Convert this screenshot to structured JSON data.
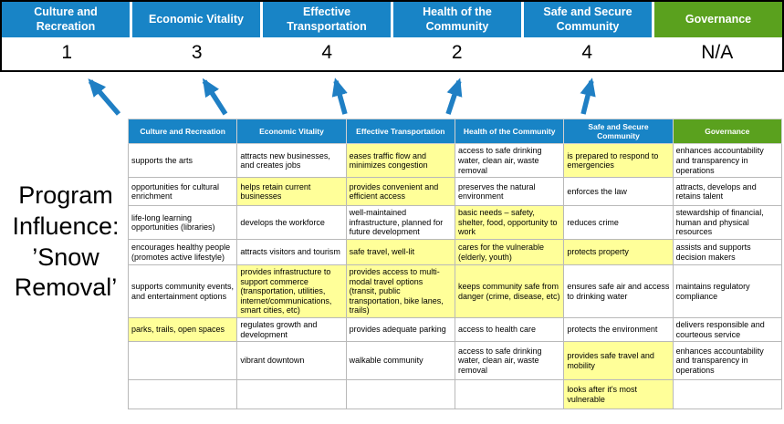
{
  "title": "Program Influence: ’Snow Removal’",
  "colors": {
    "header_blue": "#1884c6",
    "governance_green": "#5aa11e",
    "highlight_yellow": "#ffff99",
    "arrow_blue": "#1f7fc4"
  },
  "scoreboard": {
    "categories": [
      {
        "label": "Culture and Recreation",
        "score": "1",
        "color": "#1884c6"
      },
      {
        "label": "Economic Vitality",
        "score": "3",
        "color": "#1884c6"
      },
      {
        "label": "Effective Transportation",
        "score": "4",
        "color": "#1884c6"
      },
      {
        "label": "Health of the Community",
        "score": "2",
        "color": "#1884c6"
      },
      {
        "label": "Safe and Secure Community",
        "score": "4",
        "color": "#1884c6"
      },
      {
        "label": "Governance",
        "score": "N/A",
        "color": "#5aa11e"
      }
    ]
  },
  "table": {
    "headers": [
      {
        "label": "Culture and Recreation",
        "color": "#1884c6"
      },
      {
        "label": "Economic Vitality",
        "color": "#1884c6"
      },
      {
        "label": "Effective Transportation",
        "color": "#1884c6"
      },
      {
        "label": "Health of the Community",
        "color": "#1884c6"
      },
      {
        "label": "Safe and Secure Community",
        "color": "#1884c6"
      },
      {
        "label": "Governance",
        "color": "#5aa11e"
      }
    ],
    "rows": [
      {
        "cells": [
          {
            "text": "supports the arts",
            "highlight": false
          },
          {
            "text": "attracts new businesses, and creates jobs",
            "highlight": false
          },
          {
            "text": "eases traffic flow and minimizes congestion",
            "highlight": true
          },
          {
            "text": "access to safe drinking water, clean air, waste removal",
            "highlight": false
          },
          {
            "text": "is prepared to respond to emergencies",
            "highlight": true
          },
          {
            "text": "enhances accountability and transparency in operations",
            "highlight": false
          }
        ]
      },
      {
        "cells": [
          {
            "text": "opportunities for cultural enrichment",
            "highlight": false
          },
          {
            "text": "helps retain current businesses",
            "highlight": true
          },
          {
            "text": "provides convenient and efficient access",
            "highlight": true
          },
          {
            "text": "preserves the natural environment",
            "highlight": false
          },
          {
            "text": "enforces the law",
            "highlight": false
          },
          {
            "text": "attracts, develops and retains talent",
            "highlight": false
          }
        ]
      },
      {
        "cells": [
          {
            "text": "life-long learning opportunities (libraries)",
            "highlight": false
          },
          {
            "text": "develops the workforce",
            "highlight": false
          },
          {
            "text": "well-maintained infrastructure, planned for future development",
            "highlight": false
          },
          {
            "text": "basic needs – safety, shelter, food, opportunity to work",
            "highlight": true
          },
          {
            "text": "reduces crime",
            "highlight": false
          },
          {
            "text": "stewardship of financial, human and physical resources",
            "highlight": false
          }
        ]
      },
      {
        "cells": [
          {
            "text": "encourages healthy people (promotes active lifestyle)",
            "highlight": false
          },
          {
            "text": "attracts visitors and tourism",
            "highlight": false
          },
          {
            "text": "safe travel, well-lit",
            "highlight": true
          },
          {
            "text": "cares for the vulnerable (elderly, youth)",
            "highlight": true
          },
          {
            "text": "protects property",
            "highlight": true
          },
          {
            "text": "assists and supports decision makers",
            "highlight": false
          }
        ]
      },
      {
        "cells": [
          {
            "text": "supports community events, and entertainment options",
            "highlight": false
          },
          {
            "text": "provides infrastructure to support commerce (transportation, utilities, internet/communications, smart cities, etc)",
            "highlight": true
          },
          {
            "text": "provides access to multi-modal travel options (transit, public transportation, bike lanes, trails)",
            "highlight": true
          },
          {
            "text": "keeps community safe from danger (crime, disease, etc)",
            "highlight": true
          },
          {
            "text": "ensures safe air and access to drinking water",
            "highlight": false
          },
          {
            "text": "maintains regulatory compliance",
            "highlight": false
          }
        ]
      },
      {
        "cells": [
          {
            "text": "parks, trails, open spaces",
            "highlight": true
          },
          {
            "text": "regulates growth and development",
            "highlight": false
          },
          {
            "text": "provides adequate parking",
            "highlight": false
          },
          {
            "text": "access to health care",
            "highlight": false
          },
          {
            "text": "protects the environment",
            "highlight": false
          },
          {
            "text": "delivers responsible and courteous service",
            "highlight": false
          }
        ]
      },
      {
        "cells": [
          {
            "text": "",
            "highlight": false
          },
          {
            "text": "vibrant downtown",
            "highlight": false
          },
          {
            "text": "walkable community",
            "highlight": false
          },
          {
            "text": "access to safe drinking water, clean air, waste removal",
            "highlight": false
          },
          {
            "text": "provides safe travel and mobility",
            "highlight": true
          },
          {
            "text": "enhances accountability and transparency in operations",
            "highlight": false
          }
        ]
      },
      {
        "cells": [
          {
            "text": "",
            "highlight": false
          },
          {
            "text": "",
            "highlight": false
          },
          {
            "text": "",
            "highlight": false
          },
          {
            "text": "",
            "highlight": false
          },
          {
            "text": "looks after it's most vulnerable",
            "highlight": true
          },
          {
            "text": "",
            "highlight": false
          }
        ]
      }
    ]
  }
}
